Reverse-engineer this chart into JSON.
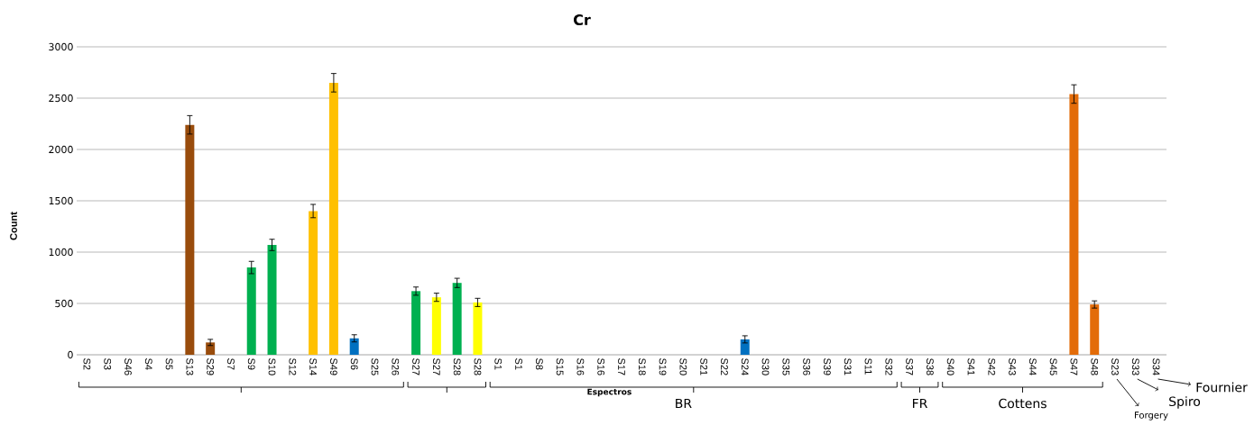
{
  "chart_data": {
    "type": "bar",
    "title": "Cr",
    "ylabel": "Count",
    "categories": [
      "S2",
      "S3",
      "S46",
      "S4",
      "S5",
      "S13",
      "S29",
      "S7",
      "S9",
      "S10",
      "S12",
      "S14",
      "S49",
      "S6",
      "S25",
      "S26",
      "S27",
      "S27",
      "S28",
      "S28",
      "S1",
      "S1",
      "S8",
      "S15",
      "S16",
      "S16",
      "S17",
      "S18",
      "S19",
      "S20",
      "S21",
      "S22",
      "S24",
      "S30",
      "S35",
      "S36",
      "S39",
      "S31",
      "S11",
      "S32",
      "S37",
      "S38",
      "S40",
      "S41",
      "S42",
      "S43",
      "S44",
      "S45",
      "S47",
      "S48",
      "S23",
      "S33",
      "S34"
    ],
    "values": [
      0,
      0,
      0,
      0,
      0,
      2240,
      120,
      0,
      850,
      1070,
      0,
      1400,
      2650,
      160,
      0,
      0,
      620,
      560,
      700,
      510,
      0,
      0,
      0,
      0,
      0,
      0,
      0,
      0,
      0,
      0,
      0,
      0,
      150,
      0,
      0,
      0,
      0,
      0,
      0,
      0,
      0,
      0,
      0,
      0,
      0,
      0,
      0,
      0,
      2540,
      490,
      0,
      0,
      0
    ],
    "errors": [
      null,
      null,
      null,
      null,
      null,
      90,
      30,
      null,
      60,
      55,
      null,
      65,
      90,
      35,
      null,
      null,
      40,
      40,
      45,
      40,
      null,
      null,
      null,
      null,
      null,
      null,
      null,
      null,
      null,
      null,
      null,
      null,
      35,
      null,
      null,
      null,
      null,
      null,
      null,
      null,
      null,
      null,
      null,
      null,
      null,
      null,
      null,
      null,
      90,
      35,
      null,
      null,
      null
    ],
    "colors": [
      "#994c0c",
      "#994c0c",
      "#994c0c",
      "#994c0c",
      "#994c0c",
      "#994c0c",
      "#994c0c",
      "#00b050",
      "#00b050",
      "#00b050",
      "#ffc000",
      "#ffc000",
      "#ffc000",
      "#0070c0",
      "#0070c0",
      "#0070c0",
      "#00b050",
      "#ffff00",
      "#00b050",
      "#ffff00",
      "#0070c0",
      "#0070c0",
      "#0070c0",
      "#0070c0",
      "#0070c0",
      "#0070c0",
      "#0070c0",
      "#0070c0",
      "#0070c0",
      "#0070c0",
      "#0070c0",
      "#0070c0",
      "#0070c0",
      "#0070c0",
      "#0070c0",
      "#0070c0",
      "#0070c0",
      "#0070c0",
      "#0070c0",
      "#0070c0",
      "#0070c0",
      "#0070c0",
      "#e36c09",
      "#e36c09",
      "#e36c09",
      "#e36c09",
      "#e36c09",
      "#e36c09",
      "#e36c09",
      "#e36c09",
      "#e36c09",
      "#e36c09",
      "#e36c09"
    ],
    "ylim": [
      0,
      3000
    ],
    "yticks": [
      0,
      500,
      1000,
      1500,
      2000,
      2500,
      3000
    ],
    "grid": "y",
    "annotations": [
      "Espectros",
      "BR",
      "FR",
      "Cottens",
      "Forgery",
      "Spiro",
      "Fournier"
    ]
  }
}
